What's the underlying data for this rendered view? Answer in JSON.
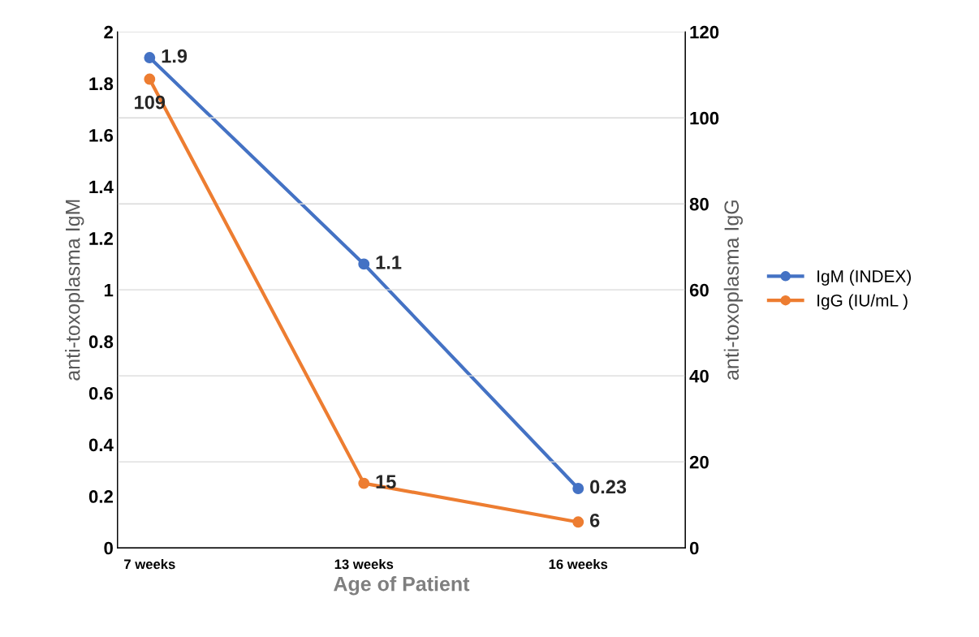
{
  "chart_data": {
    "type": "line",
    "xlabel": "Age of Patient",
    "ylabel": "anti-toxoplasma IgM",
    "y2label": "anti-toxoplasma IgG",
    "categories": [
      "7 weeks",
      "13 weeks",
      "16 weeks"
    ],
    "series": [
      {
        "name": "IgM (INDEX)",
        "color": "#4472c4",
        "values": [
          1.9,
          1.1,
          0.23
        ]
      },
      {
        "name": "IgG (IU/mL )",
        "color": "#ed7d31",
        "values": [
          109,
          15,
          6
        ],
        "axis": "y2"
      }
    ],
    "ylim": [
      0,
      2
    ],
    "yticks": [
      0,
      0.2,
      0.4,
      0.6,
      0.8,
      1,
      1.2,
      1.4,
      1.6,
      1.8,
      2
    ],
    "y2lim": [
      0,
      120
    ],
    "y2ticks": [
      0,
      20,
      40,
      60,
      80,
      100,
      120
    ],
    "grid": "y",
    "legend": "right",
    "marker": "circle",
    "data_labels": true
  }
}
